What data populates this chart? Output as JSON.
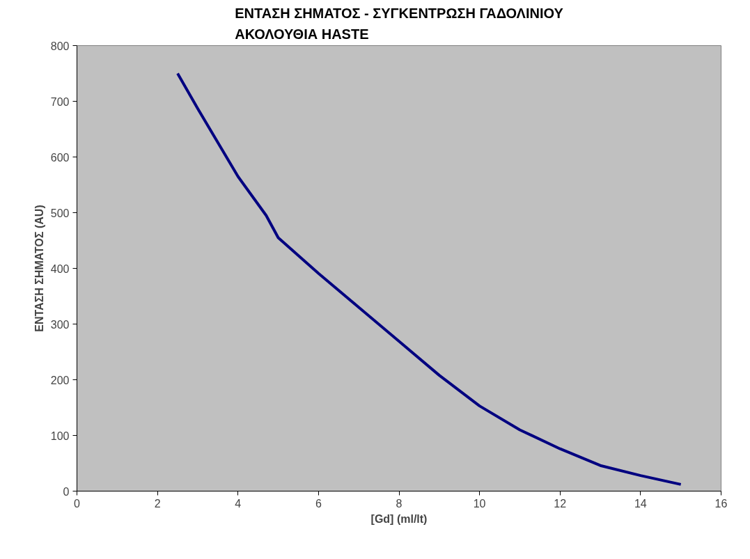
{
  "chart_data": {
    "type": "line",
    "title": "ΕΝΤΑΣΗ ΣΗΜΑΤΟΣ - ΣΥΓΚΕΝΤΡΩΣΗ ΓΑΔΟΛΙΝΙΟΥ\nΑΚΟΛΟΥΘΙΑ HASTE",
    "xlabel": "[Gd] (ml/lt)",
    "ylabel": "ΕΝΤΑΣΗ ΣΗΜΑΤΟΣ (AU)",
    "x": [
      2.5,
      3,
      4,
      4.7,
      5,
      6,
      7,
      8,
      9,
      10,
      11,
      12,
      13,
      14,
      15
    ],
    "series": [
      {
        "color": "#000080",
        "values": [
          750,
          687,
          565,
          495,
          455,
          391,
          330,
          269,
          208,
          153,
          110,
          76,
          46,
          28,
          12
        ]
      }
    ],
    "xlim": [
      0,
      16
    ],
    "xticks": [
      0,
      2,
      4,
      6,
      8,
      10,
      12,
      14,
      16
    ],
    "ylim": [
      0,
      800
    ],
    "yticks": [
      0,
      100,
      200,
      300,
      400,
      500,
      600,
      700,
      800
    ],
    "grid": false,
    "marker": "none",
    "line_style": "solid"
  }
}
